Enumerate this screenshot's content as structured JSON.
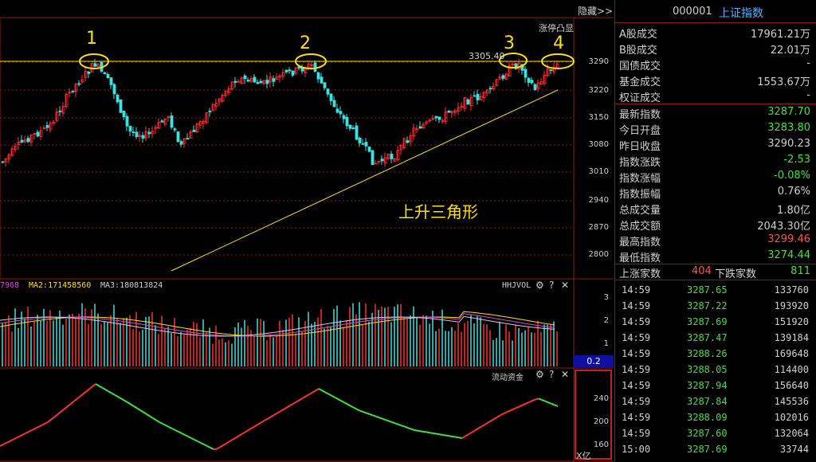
{
  "toolbar": {
    "hide_label": "隐藏>>"
  },
  "price_panel": {
    "label": "涨停凸显",
    "price_marker": "3305.40",
    "pattern_text": "上升三角形",
    "markers": [
      "1",
      "2",
      "3",
      "4"
    ],
    "y_ticks": [
      "3290",
      "3220",
      "3150",
      "3080",
      "3010",
      "2940",
      "2870",
      "2800"
    ]
  },
  "volume_panel": {
    "ma1": "7968",
    "ma2": "MA2:171458560",
    "ma3": "MA3:180813824",
    "name": "HHJVOL",
    "y_ticks": [
      "3",
      "2",
      "1"
    ],
    "value_box": "0.2"
  },
  "flow_panel": {
    "name": "流动资金",
    "y_ticks": [
      "240",
      "200",
      "160"
    ],
    "unit": "X亿"
  },
  "controls": {
    "settings_icon": "⚙",
    "help_icon": "?",
    "close_icon": "✕"
  },
  "side": {
    "code": "000001",
    "name": "上证指数",
    "turnover_rows": [
      {
        "label": "A股成交",
        "value": "17961.21万"
      },
      {
        "label": "B股成交",
        "value": "22.01万"
      },
      {
        "label": "国债成交",
        "value": "-"
      },
      {
        "label": "基金成交",
        "value": "1553.67万"
      },
      {
        "label": "权证成交",
        "value": "-"
      }
    ],
    "index_rows": [
      {
        "label": "最新指数",
        "value": "3287.70",
        "color": "#40e040"
      },
      {
        "label": "今日开盘",
        "value": "3283.80",
        "color": "#40e040"
      },
      {
        "label": "昨日收盘",
        "value": "3290.23",
        "color": "#d0d0d0"
      },
      {
        "label": "指数涨跌",
        "value": "-2.53",
        "color": "#40e040"
      },
      {
        "label": "指数涨幅",
        "value": "-0.08%",
        "color": "#40e040"
      },
      {
        "label": "指数振幅",
        "value": "0.76%",
        "color": "#d0d0d0"
      },
      {
        "label": "总成交量",
        "value": "1.80亿",
        "color": "#d0d0d0"
      },
      {
        "label": "总成交额",
        "value": "2043.30亿",
        "color": "#d0d0d0"
      },
      {
        "label": "最高指数",
        "value": "3299.46",
        "color": "#ff5050"
      },
      {
        "label": "最低指数",
        "value": "3274.44",
        "color": "#40e040"
      }
    ],
    "breadth": {
      "up_label": "上涨家数",
      "up_value": "404",
      "down_label": "下跌家数",
      "down_value": "811"
    },
    "ticks": [
      {
        "time": "14:59",
        "price": "3287.65",
        "vol": "133760"
      },
      {
        "time": "14:59",
        "price": "3287.22",
        "vol": "193920"
      },
      {
        "time": "14:59",
        "price": "3287.69",
        "vol": "151920"
      },
      {
        "time": "14:59",
        "price": "3287.47",
        "vol": "139184"
      },
      {
        "time": "14:59",
        "price": "3288.26",
        "vol": "169648"
      },
      {
        "time": "14:59",
        "price": "3288.05",
        "vol": "114400"
      },
      {
        "time": "14:59",
        "price": "3287.94",
        "vol": "156640"
      },
      {
        "time": "14:59",
        "price": "3287.84",
        "vol": "145536"
      },
      {
        "time": "14:59",
        "price": "3288.09",
        "vol": "102016"
      },
      {
        "time": "14:59",
        "price": "3287.60",
        "vol": "132064"
      },
      {
        "time": "15:00",
        "price": "3287.69",
        "vol": "33744"
      }
    ]
  },
  "colors": {
    "up": "#ff3030",
    "down": "#40e0e0",
    "accent": "#ffe000",
    "border": "#8b1a1a"
  }
}
